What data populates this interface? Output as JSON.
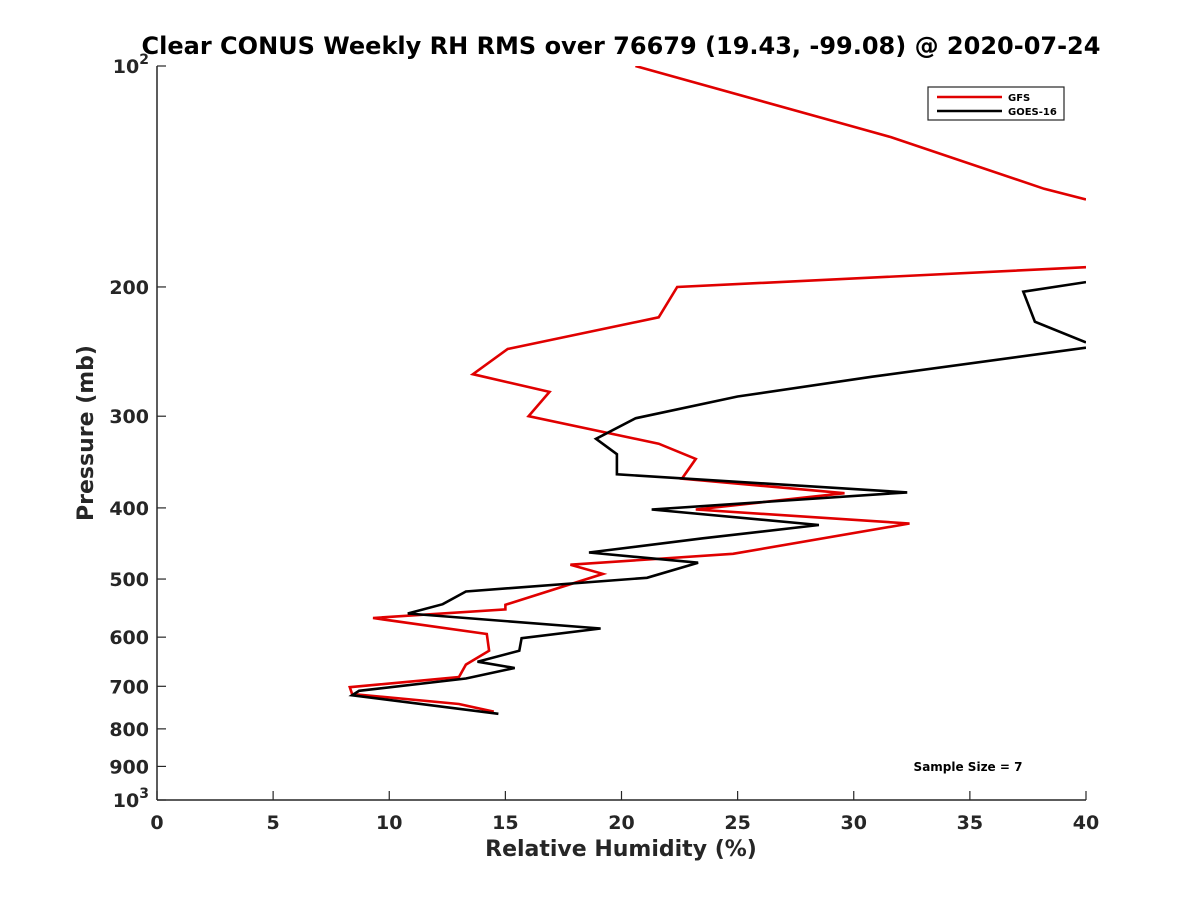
{
  "chart_data": {
    "type": "line",
    "title": "Clear CONUS Weekly RH RMS over 76679 (19.43, -99.08) @ 2020-07-24",
    "xlabel": "Relative Humidity (%)",
    "ylabel": "Pressure (mb)",
    "xlim": [
      0,
      40
    ],
    "ylim": [
      1000,
      100
    ],
    "yscale": "log",
    "y_reversed": true,
    "xticks": [
      0,
      5,
      10,
      15,
      20,
      25,
      30,
      35,
      40
    ],
    "xtick_labels": [
      "0",
      "5",
      "10",
      "15",
      "20",
      "25",
      "30",
      "35",
      "40"
    ],
    "yticks": [
      100,
      200,
      300,
      400,
      500,
      600,
      700,
      800,
      900,
      1000
    ],
    "ytick_labels": [
      {
        "base": "10",
        "exp": "2"
      },
      {
        "base": "200"
      },
      {
        "base": "300"
      },
      {
        "base": "400"
      },
      {
        "base": "500"
      },
      {
        "base": "600"
      },
      {
        "base": "700"
      },
      {
        "base": "800"
      },
      {
        "base": "900"
      },
      {
        "base": "10",
        "exp": "3"
      }
    ],
    "grid": false,
    "legend_position": "top-right",
    "annotation": "Sample Size = 7",
    "series": [
      {
        "name": "GFS",
        "color": "#e00000",
        "segments": [
          [
            [
              20.6,
              100
            ],
            [
              31.6,
              125
            ],
            [
              38.2,
              147
            ],
            [
              40,
              152
            ]
          ],
          [
            [
              40,
              188
            ],
            [
              22.4,
              200
            ],
            [
              21.6,
              220
            ],
            [
              15.1,
              243
            ],
            [
              13.6,
              263
            ],
            [
              16.9,
              278
            ],
            [
              16.0,
              300
            ],
            [
              21.6,
              327
            ],
            [
              23.2,
              343
            ],
            [
              22.6,
              365
            ],
            [
              29.6,
              382
            ],
            [
              23.2,
              402
            ],
            [
              32.4,
              420
            ],
            [
              24.8,
              462
            ],
            [
              17.8,
              478
            ],
            [
              19.2,
              492
            ],
            [
              15.0,
              542
            ],
            [
              15.0,
              550
            ],
            [
              9.3,
              565
            ],
            [
              14.2,
              594
            ],
            [
              14.3,
              626
            ],
            [
              13.3,
              654
            ],
            [
              13.0,
              680
            ],
            [
              8.3,
              702
            ],
            [
              8.4,
              717
            ],
            [
              13.0,
              740
            ],
            [
              14.5,
              758
            ]
          ]
        ]
      },
      {
        "name": "GOES-16",
        "color": "#000000",
        "segments": [
          [
            [
              40,
              197
            ],
            [
              37.3,
              203
            ],
            [
              37.8,
              223
            ],
            [
              40,
              238
            ]
          ],
          [
            [
              40,
              242
            ],
            [
              30.8,
              265
            ],
            [
              25.0,
              282
            ],
            [
              20.6,
              302
            ],
            [
              18.9,
              322
            ],
            [
              19.8,
              338
            ],
            [
              19.8,
              360
            ],
            [
              32.3,
              381
            ],
            [
              21.3,
              402
            ],
            [
              28.5,
              422
            ],
            [
              23.5,
              440
            ],
            [
              18.6,
              460
            ],
            [
              23.3,
              475
            ],
            [
              21.1,
              498
            ],
            [
              13.3,
              520
            ],
            [
              12.3,
              541
            ],
            [
              10.8,
              557
            ],
            [
              19.1,
              584
            ],
            [
              15.7,
              602
            ],
            [
              15.6,
              626
            ],
            [
              13.8,
              648
            ],
            [
              15.4,
              661
            ],
            [
              13.3,
              683
            ],
            [
              8.7,
              710
            ],
            [
              8.4,
              720
            ],
            [
              14.7,
              763
            ]
          ]
        ]
      }
    ]
  }
}
